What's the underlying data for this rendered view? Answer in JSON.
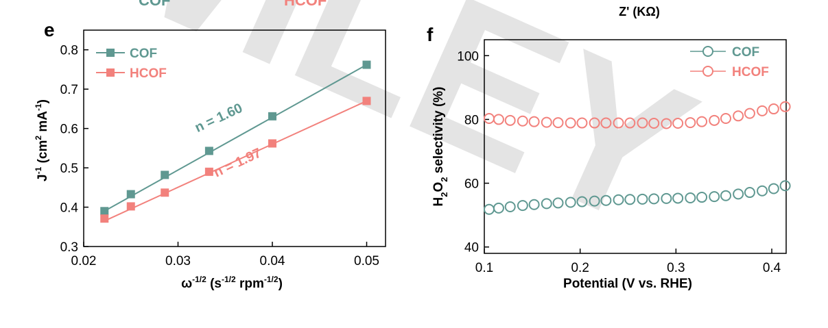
{
  "watermark": "WILEY",
  "top_fragments": {
    "cof": "COF",
    "hcof": "HCOF",
    "zprime": "Z' (KΩ)"
  },
  "colors": {
    "cof": "#5f9891",
    "hcof": "#f2817c",
    "axis": "#000000",
    "watermark": "#e3e3e3"
  },
  "chart_data": [
    {
      "panel": "e",
      "type": "line",
      "markers": "filled-square",
      "xlabel": {
        "base": "ω",
        "sup1": "-1/2",
        "mid": " (s",
        "sup2": "-1/2",
        "mid2": " rpm",
        "sup3": "-1/2",
        "end": ")"
      },
      "ylabel": {
        "base": "J",
        "sup1": "-1",
        "mid": " (cm",
        "sup2": "2",
        "mid2": " mA",
        "sup3": "-1",
        "end": ")"
      },
      "xlim": [
        0.02,
        0.052
      ],
      "ylim": [
        0.3,
        0.85
      ],
      "xticks": [
        0.02,
        0.03,
        0.04,
        0.05
      ],
      "xtick_labels": [
        "0.02",
        "0.03",
        "0.04",
        "0.05"
      ],
      "yticks": [
        0.3,
        0.4,
        0.5,
        0.6,
        0.7,
        0.8
      ],
      "ytick_labels": [
        "0.3",
        "0.4",
        "0.5",
        "0.6",
        "0.7",
        "0.8"
      ],
      "legend_position": "top-left",
      "series": [
        {
          "name": "COF",
          "color_key": "cof",
          "x": [
            0.0222,
            0.025,
            0.0286,
            0.0333,
            0.04,
            0.05
          ],
          "y": [
            0.39,
            0.433,
            0.482,
            0.543,
            0.631,
            0.762
          ],
          "fit": {
            "x": [
              0.0222,
              0.05
            ],
            "y": [
              0.39,
              0.762
            ]
          }
        },
        {
          "name": "HCOF",
          "color_key": "hcof",
          "x": [
            0.0222,
            0.025,
            0.0286,
            0.0333,
            0.04,
            0.05
          ],
          "y": [
            0.371,
            0.402,
            0.437,
            0.49,
            0.562,
            0.67
          ],
          "fit": {
            "x": [
              0.0222,
              0.05
            ],
            "y": [
              0.365,
              0.67
            ]
          }
        }
      ],
      "annotations": [
        {
          "text": "n = 1.60",
          "color_key": "cof",
          "x": 0.0345,
          "y": 0.617,
          "angle": -25
        },
        {
          "text": "n = 1.97",
          "color_key": "hcof",
          "x": 0.0365,
          "y": 0.503,
          "angle": -25
        }
      ]
    },
    {
      "panel": "f",
      "type": "scatter",
      "markers": "open-circle",
      "xlabel": "Potential (V vs. RHE)",
      "ylabel": {
        "base": "H",
        "sub1": "2",
        "mid": "O",
        "sub2": "2",
        "end": " selectivity (%)"
      },
      "xlim": [
        0.1,
        0.415
      ],
      "ylim": [
        38,
        105
      ],
      "xticks": [
        0.1,
        0.2,
        0.3,
        0.4
      ],
      "xtick_labels": [
        "0.1",
        "0.2",
        "0.3",
        "0.4"
      ],
      "yticks": [
        40,
        60,
        80,
        100
      ],
      "ytick_labels": [
        "40",
        "60",
        "80",
        "100"
      ],
      "legend_position": "top-right",
      "series": [
        {
          "name": "COF",
          "color_key": "cof",
          "x": [
            0.105,
            0.115,
            0.127,
            0.14,
            0.152,
            0.165,
            0.177,
            0.19,
            0.202,
            0.215,
            0.227,
            0.24,
            0.252,
            0.265,
            0.277,
            0.29,
            0.302,
            0.315,
            0.327,
            0.34,
            0.352,
            0.365,
            0.377,
            0.39,
            0.402,
            0.414
          ],
          "y": [
            51.8,
            52.2,
            52.6,
            53.0,
            53.3,
            53.6,
            53.8,
            54.0,
            54.2,
            54.4,
            54.6,
            54.8,
            54.9,
            55.0,
            55.1,
            55.2,
            55.3,
            55.4,
            55.6,
            55.8,
            56.1,
            56.6,
            57.1,
            57.6,
            58.3,
            59.2
          ]
        },
        {
          "name": "HCOF",
          "color_key": "hcof",
          "x": [
            0.105,
            0.115,
            0.127,
            0.14,
            0.152,
            0.165,
            0.177,
            0.19,
            0.202,
            0.215,
            0.227,
            0.24,
            0.252,
            0.265,
            0.277,
            0.29,
            0.302,
            0.315,
            0.327,
            0.34,
            0.352,
            0.365,
            0.377,
            0.39,
            0.402,
            0.414
          ],
          "y": [
            80.3,
            80.0,
            79.7,
            79.5,
            79.3,
            79.1,
            79.0,
            78.9,
            78.9,
            78.9,
            78.9,
            78.9,
            78.9,
            78.9,
            78.8,
            78.7,
            78.8,
            79.0,
            79.3,
            79.7,
            80.3,
            81.1,
            81.9,
            82.7,
            83.3,
            84.0
          ]
        }
      ]
    }
  ]
}
